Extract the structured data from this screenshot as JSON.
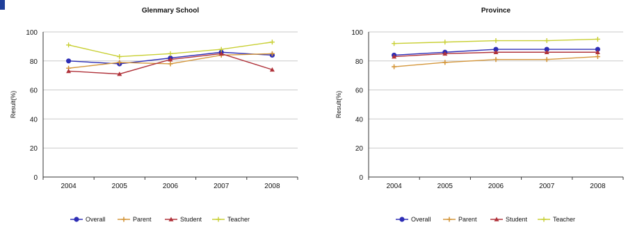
{
  "chart_data": [
    {
      "type": "line",
      "title": "Glenmary School",
      "ylabel": "Result(%)",
      "xlabel": "",
      "categories": [
        "2004",
        "2005",
        "2006",
        "2007",
        "2008"
      ],
      "ylim": [
        0,
        100
      ],
      "yticks": [
        "0",
        "20",
        "40",
        "60",
        "80",
        "100"
      ],
      "grid": true,
      "legend_position": "bottom",
      "series": [
        {
          "name": "Overall",
          "color": "#2d2db5",
          "marker": "circle",
          "values": [
            80,
            78,
            82,
            86,
            84
          ]
        },
        {
          "name": "Parent",
          "color": "#d4963a",
          "marker": "diamond",
          "values": [
            75,
            79,
            78,
            84,
            85
          ]
        },
        {
          "name": "Student",
          "color": "#b0323a",
          "marker": "triangle",
          "values": [
            73,
            71,
            81,
            85,
            74
          ]
        },
        {
          "name": "Teacher",
          "color": "#c8cf32",
          "marker": "cross",
          "values": [
            91,
            83,
            85,
            88,
            93
          ]
        }
      ]
    },
    {
      "type": "line",
      "title": "Province",
      "ylabel": "Result(%)",
      "xlabel": "",
      "categories": [
        "2004",
        "2005",
        "2006",
        "2007",
        "2008"
      ],
      "ylim": [
        0,
        100
      ],
      "yticks": [
        "0",
        "20",
        "40",
        "60",
        "80",
        "100"
      ],
      "grid": true,
      "legend_position": "bottom",
      "series": [
        {
          "name": "Overall",
          "color": "#2d2db5",
          "marker": "circle",
          "values": [
            84,
            86,
            88,
            88,
            88
          ]
        },
        {
          "name": "Parent",
          "color": "#d4963a",
          "marker": "diamond",
          "values": [
            76,
            79,
            81,
            81,
            83
          ]
        },
        {
          "name": "Student",
          "color": "#b0323a",
          "marker": "triangle",
          "values": [
            83,
            85,
            86,
            86,
            86
          ]
        },
        {
          "name": "Teacher",
          "color": "#c8cf32",
          "marker": "cross",
          "values": [
            92,
            93,
            94,
            94,
            95
          ]
        }
      ]
    }
  ]
}
